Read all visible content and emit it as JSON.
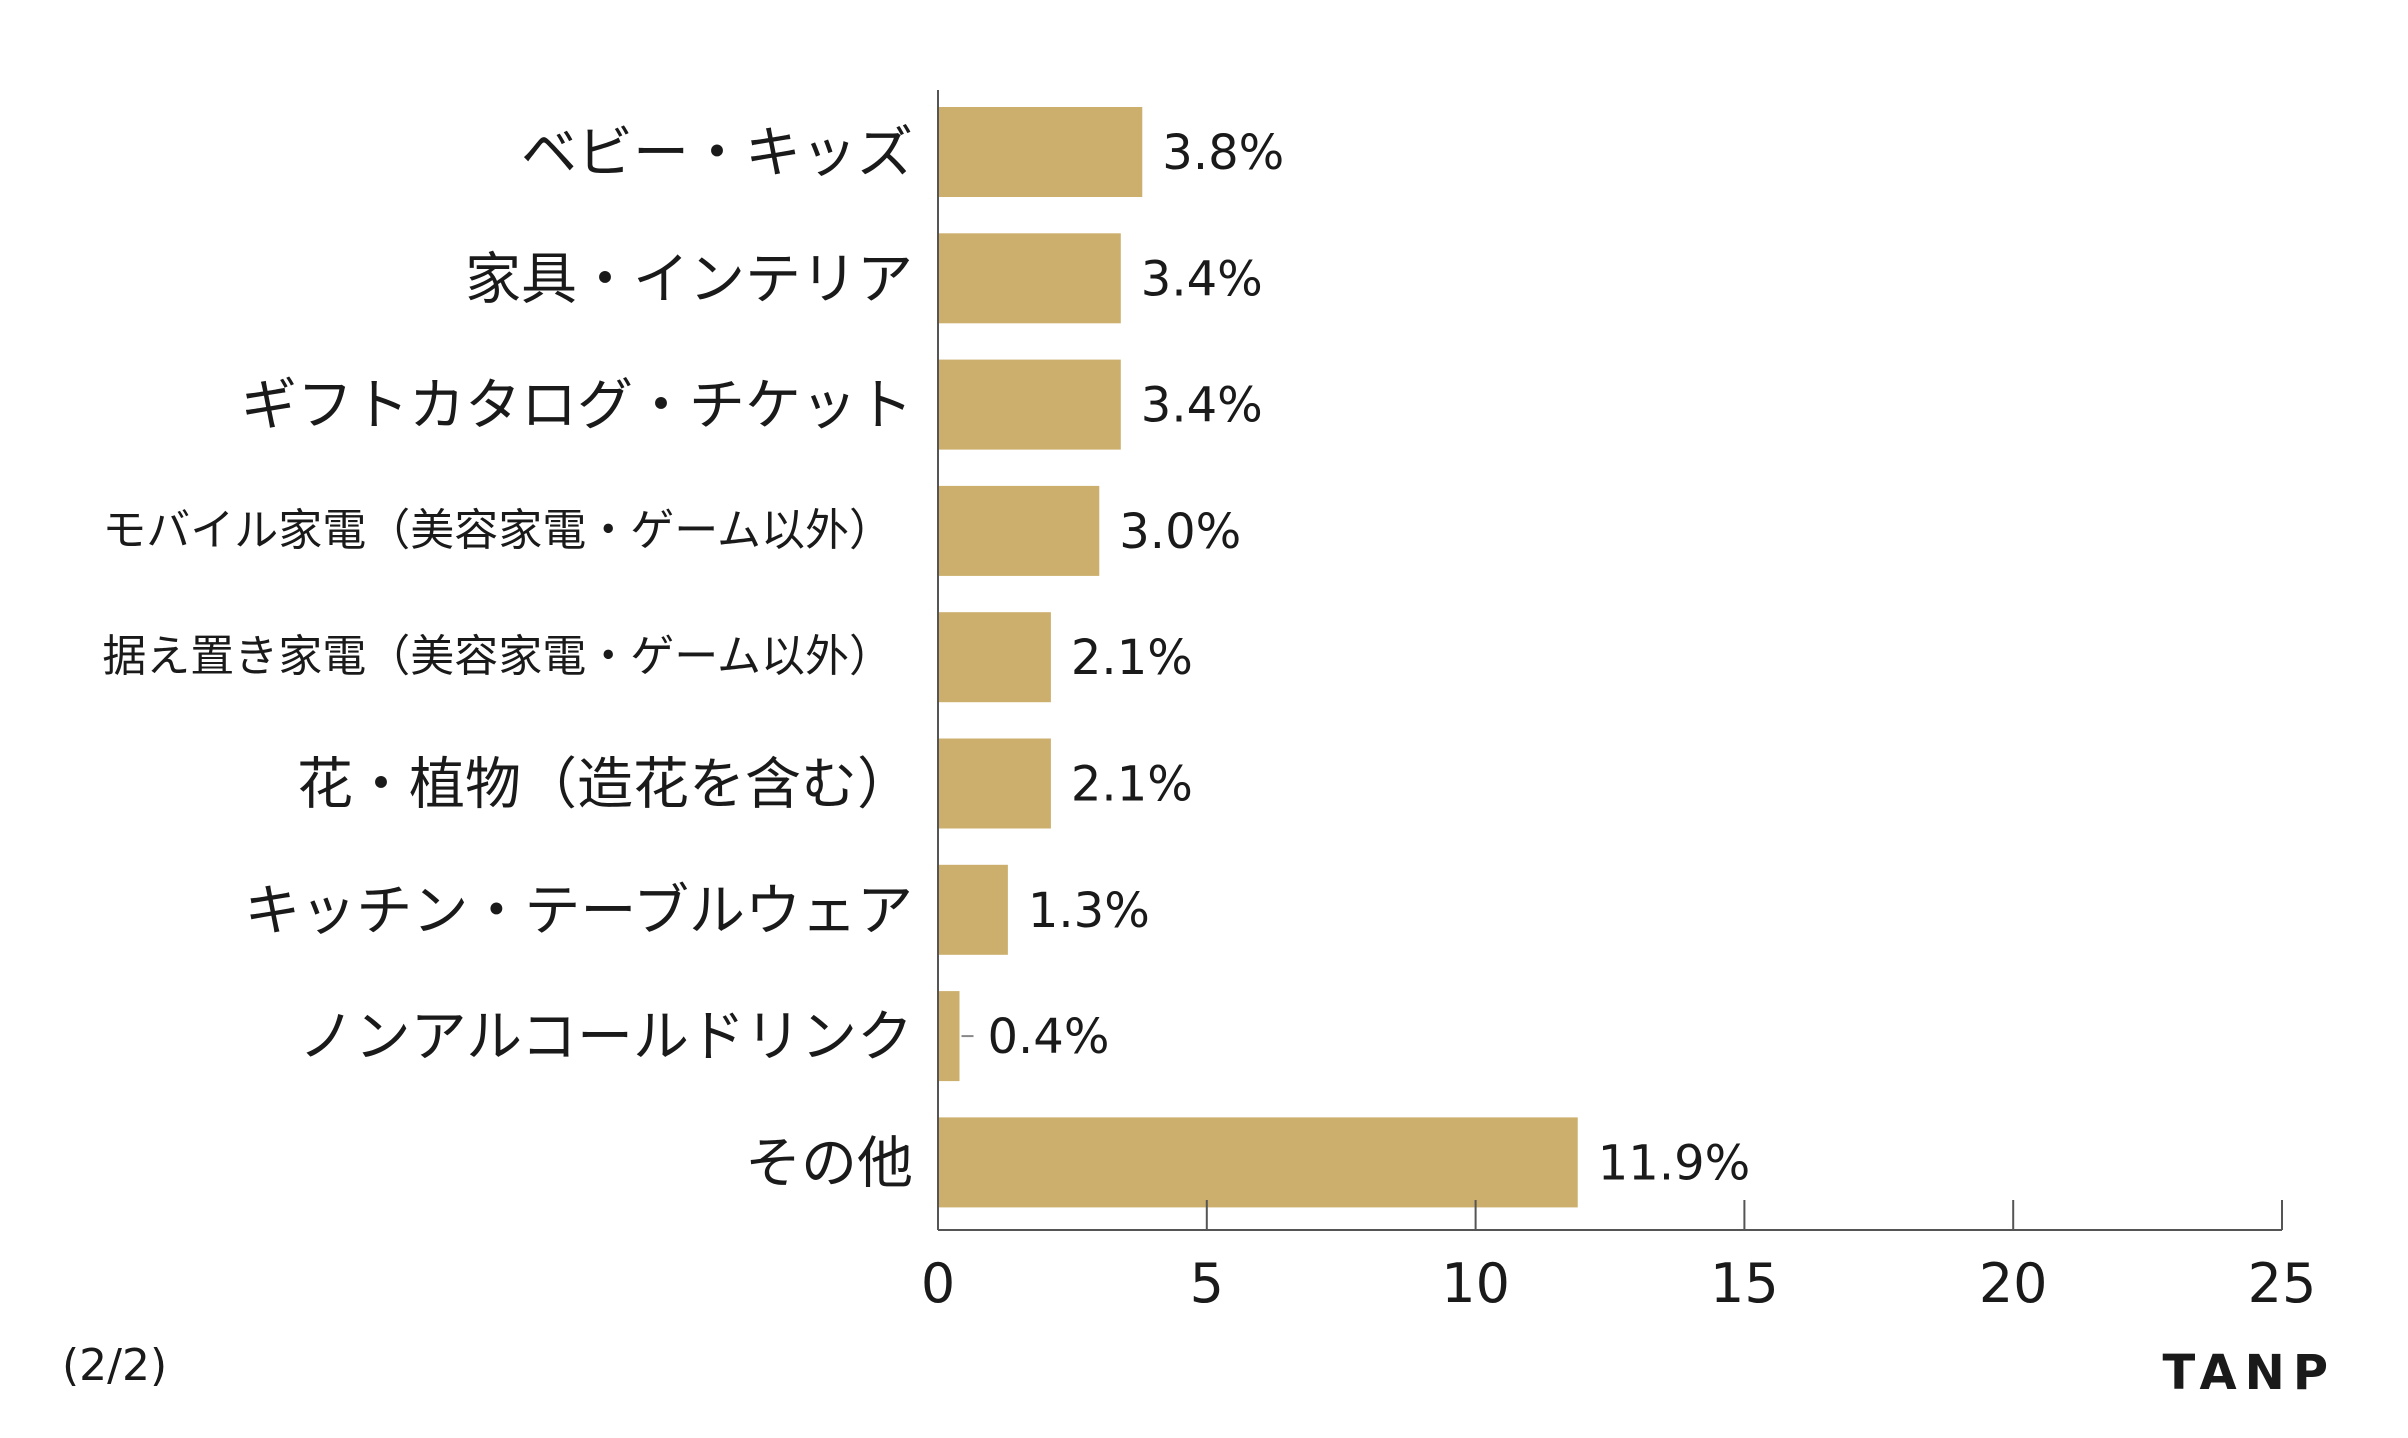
{
  "chart_data": {
    "type": "bar",
    "orientation": "horizontal",
    "categories": [
      "ベビー・キッズ",
      "家具・インテリア",
      "ギフトカタログ・チケット",
      "モバイル家電（美容家電・ゲーム以外）",
      "据え置き家電（美容家電・ゲーム以外）",
      "花・植物（造花を含む）",
      "キッチン・テーブルウェア",
      "ノンアルコールドリンク",
      "その他"
    ],
    "values": [
      3.8,
      3.4,
      3.4,
      3.0,
      2.1,
      2.1,
      1.3,
      0.4,
      11.9
    ],
    "value_labels": [
      "3.8%",
      "3.4%",
      "3.4%",
      "3.0%",
      "2.1%",
      "2.1%",
      "1.3%",
      "0.4%",
      "11.9%"
    ],
    "xlim": [
      0,
      25
    ],
    "xticks": [
      0,
      5,
      10,
      15,
      20,
      25
    ],
    "xtick_labels": [
      "0",
      "5",
      "10",
      "15",
      "20",
      "25"
    ],
    "grid": false,
    "bar_color": "#CCAF6C"
  },
  "page_note": "(2/2)",
  "brand": "TANP"
}
